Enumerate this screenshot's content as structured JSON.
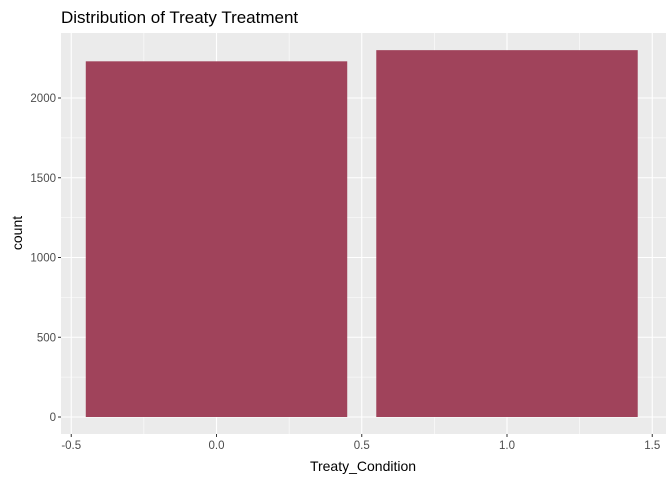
{
  "chart_data": {
    "type": "bar",
    "title": "Distribution of Treaty Treatment",
    "xlabel": "Treaty_Condition",
    "ylabel": "count",
    "x": [
      0,
      1
    ],
    "values": [
      2230,
      2300
    ],
    "bar_width": 0.9,
    "xlim": [
      -0.5,
      1.5
    ],
    "ylim": [
      0,
      2300
    ],
    "x_ticks": [
      -0.5,
      0.0,
      0.5,
      1.0,
      1.5
    ],
    "x_tick_labels": [
      "-0.5",
      "0.0",
      "0.5",
      "1.0",
      "1.5"
    ],
    "y_ticks": [
      0,
      500,
      1000,
      1500,
      2000
    ],
    "y_tick_labels": [
      "0",
      "500",
      "1000",
      "1500",
      "2000"
    ],
    "grid": true,
    "legend": "none",
    "colors": {
      "bar": "#A0435B",
      "panel_background": "#EBEBEB",
      "grid_major": "#FFFFFF",
      "tick_label": "#4D4D4D",
      "tick_mark": "#333333"
    }
  }
}
